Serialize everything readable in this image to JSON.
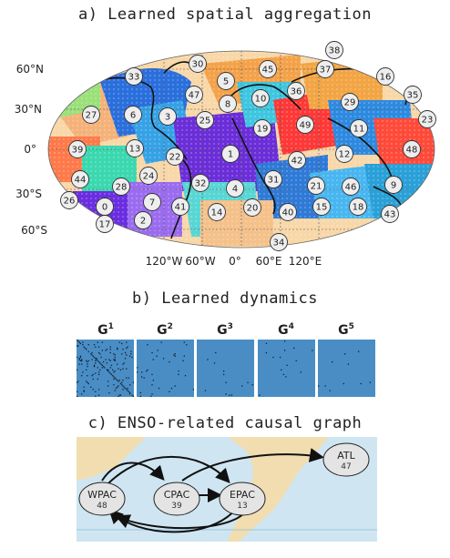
{
  "panels": {
    "a": {
      "title": "a)  Learned spatial aggregation"
    },
    "b": {
      "title": "b) Learned dynamics"
    },
    "c": {
      "title": "c) ENSO-related causal graph"
    }
  },
  "map": {
    "lat_labels": [
      "60°N",
      "30°N",
      "0°",
      "30°S",
      "60°S"
    ],
    "lon_labels": [
      "120°W",
      "60°W",
      "0°",
      "60°E",
      "120°E"
    ],
    "nodes": [
      {
        "id": "38"
      },
      {
        "id": "30"
      },
      {
        "id": "45"
      },
      {
        "id": "37"
      },
      {
        "id": "16"
      },
      {
        "id": "33"
      },
      {
        "id": "5"
      },
      {
        "id": "36"
      },
      {
        "id": "47"
      },
      {
        "id": "10"
      },
      {
        "id": "29"
      },
      {
        "id": "35"
      },
      {
        "id": "27"
      },
      {
        "id": "6"
      },
      {
        "id": "3"
      },
      {
        "id": "8"
      },
      {
        "id": "25"
      },
      {
        "id": "19"
      },
      {
        "id": "49"
      },
      {
        "id": "11"
      },
      {
        "id": "23"
      },
      {
        "id": "39"
      },
      {
        "id": "13"
      },
      {
        "id": "22"
      },
      {
        "id": "1"
      },
      {
        "id": "42"
      },
      {
        "id": "12"
      },
      {
        "id": "48"
      },
      {
        "id": "44"
      },
      {
        "id": "24"
      },
      {
        "id": "28"
      },
      {
        "id": "32"
      },
      {
        "id": "4"
      },
      {
        "id": "31"
      },
      {
        "id": "21"
      },
      {
        "id": "46"
      },
      {
        "id": "9"
      },
      {
        "id": "26"
      },
      {
        "id": "0"
      },
      {
        "id": "7"
      },
      {
        "id": "41"
      },
      {
        "id": "14"
      },
      {
        "id": "20"
      },
      {
        "id": "40"
      },
      {
        "id": "15"
      },
      {
        "id": "18"
      },
      {
        "id": "43"
      },
      {
        "id": "17"
      },
      {
        "id": "2"
      },
      {
        "id": "34"
      }
    ]
  },
  "dynamics": {
    "labels": [
      {
        "base": "G",
        "sup": "1"
      },
      {
        "base": "G",
        "sup": "2"
      },
      {
        "base": "G",
        "sup": "3"
      },
      {
        "base": "G",
        "sup": "4"
      },
      {
        "base": "G",
        "sup": "5"
      }
    ],
    "density": [
      0.05,
      0.012,
      0.004,
      0.005,
      0.005
    ],
    "matrix_color": "#4a8dc4"
  },
  "causal_graph": {
    "nodes": [
      {
        "name": "WPAC",
        "id": "48"
      },
      {
        "name": "CPAC",
        "id": "39"
      },
      {
        "name": "EPAC",
        "id": "13"
      },
      {
        "name": "ATL",
        "id": "47"
      }
    ],
    "ocean_color": "#cfe6f2",
    "land_color": "#f1ddb0"
  }
}
